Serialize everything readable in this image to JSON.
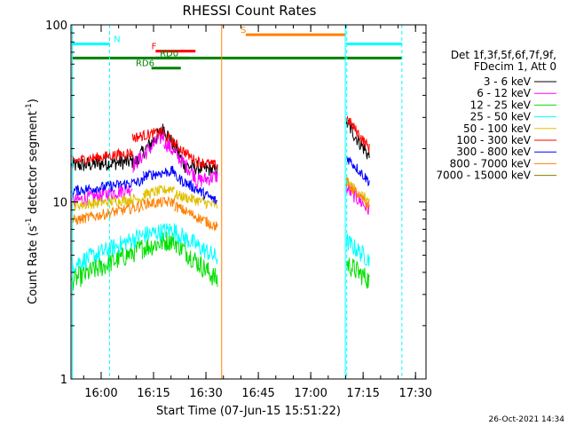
{
  "chart_data": {
    "type": "line",
    "title": "RHESSI Count Rates",
    "xlabel": "Start Time (07-Jun-15 15:51:22)",
    "ylabel_main": "Count Rate (s",
    "ylabel_sup": "-1",
    "ylabel_rest": " detector segment",
    "ylabel_sup2": "-1",
    "ylabel_close": ")",
    "ylog": true,
    "ylim": [
      1,
      100
    ],
    "y_ticks": [
      {
        "value": 1,
        "label": "1"
      },
      {
        "value": 10,
        "label": "10"
      },
      {
        "value": 100,
        "label": "100"
      }
    ],
    "x_ticks": [
      {
        "value": 16.0,
        "label": "16:00"
      },
      {
        "value": 16.25,
        "label": "16:15"
      },
      {
        "value": 16.5,
        "label": "16:30"
      },
      {
        "value": 16.75,
        "label": "16:45"
      },
      {
        "value": 17.0,
        "label": "17:00"
      },
      {
        "value": 17.25,
        "label": "17:15"
      },
      {
        "value": 17.5,
        "label": "17:30"
      }
    ],
    "xlim_hours": [
      15.8561,
      17.55
    ],
    "legend": {
      "header1": "Det 1f,3f,5f,6f,7f,9f,",
      "header2": "FDecim 1, Att 0",
      "placement": "right"
    },
    "series": [
      {
        "name": "3 - 6 keV",
        "color": "#000000",
        "base": 17,
        "noise": 0.1,
        "segments": [
          [
            15.86,
            16.18,
            16,
            17
          ],
          [
            16.18,
            16.3,
            18,
            26
          ],
          [
            16.3,
            16.4,
            26,
            16
          ],
          [
            16.4,
            16.555,
            16,
            15
          ],
          [
            17.17,
            17.28,
            28,
            18
          ]
        ]
      },
      {
        "name": "6 - 12 keV",
        "color": "#ff00ff",
        "base": 10,
        "noise": 0.1,
        "segments": [
          [
            15.86,
            16.15,
            10,
            12
          ],
          [
            16.15,
            16.3,
            16,
            24
          ],
          [
            16.3,
            16.45,
            22,
            14
          ],
          [
            16.45,
            16.555,
            13,
            14
          ],
          [
            17.17,
            17.28,
            12,
            9
          ]
        ]
      },
      {
        "name": "12 - 25 keV",
        "color": "#00e000",
        "base": 3.6,
        "noise": 0.14,
        "segments": [
          [
            15.86,
            16.2,
            3.6,
            5.5
          ],
          [
            16.2,
            16.35,
            5.5,
            6.2
          ],
          [
            16.35,
            16.555,
            6,
            3.6
          ],
          [
            17.17,
            17.28,
            4.5,
            3.6
          ]
        ]
      },
      {
        "name": "25 - 50 keV",
        "color": "#00ffff",
        "base": 4.5,
        "noise": 0.12,
        "segments": [
          [
            15.86,
            16.2,
            4.4,
            6.5
          ],
          [
            16.2,
            16.35,
            6.5,
            7
          ],
          [
            16.35,
            16.555,
            6.8,
            4.8
          ],
          [
            17.17,
            17.28,
            6,
            4.7
          ]
        ]
      },
      {
        "name": "50 - 100 keV",
        "color": "#e0c000",
        "base": 10,
        "noise": 0.07,
        "segments": [
          [
            15.86,
            16.2,
            9.5,
            10.5
          ],
          [
            16.2,
            16.35,
            11,
            12
          ],
          [
            16.35,
            16.555,
            11,
            9.5
          ],
          [
            17.17,
            17.28,
            13,
            10
          ]
        ]
      },
      {
        "name": "100 - 300 keV",
        "color": "#ff0000",
        "base": 17,
        "noise": 0.07,
        "segments": [
          [
            15.86,
            16.15,
            17,
            19
          ],
          [
            16.15,
            16.3,
            23,
            25
          ],
          [
            16.3,
            16.45,
            24,
            17
          ],
          [
            16.45,
            16.555,
            17,
            16
          ],
          [
            17.17,
            17.28,
            30,
            20
          ]
        ]
      },
      {
        "name": "300 - 800 keV",
        "color": "#0000ff",
        "base": 11.5,
        "noise": 0.07,
        "segments": [
          [
            15.86,
            16.2,
            11.5,
            13
          ],
          [
            16.2,
            16.35,
            14,
            15
          ],
          [
            16.35,
            16.555,
            14,
            10
          ],
          [
            17.17,
            17.28,
            18,
            13
          ]
        ]
      },
      {
        "name": "800 - 7000 keV",
        "color": "#ff8000",
        "base": 8,
        "noise": 0.07,
        "segments": [
          [
            15.86,
            16.2,
            7.8,
            9.5
          ],
          [
            16.2,
            16.35,
            9.8,
            10
          ],
          [
            16.35,
            16.555,
            9.5,
            7.2
          ],
          [
            17.17,
            17.28,
            13,
            9.3
          ]
        ]
      },
      {
        "name": "7000 - 15000 keV",
        "color": "#808000",
        "base": 9,
        "noise": 0.08,
        "segments": []
      }
    ],
    "flags": [
      {
        "label": "N",
        "color": "#00ffff",
        "y_value": 78,
        "x_start": 15.86,
        "x_end": 16.04,
        "label_x": 16.06
      },
      {
        "label": "",
        "color": "#00ffff",
        "y_value": 78,
        "x_start": 17.17,
        "x_end": 17.435,
        "label_x": null
      },
      {
        "label": "S",
        "color": "#ff8000",
        "y_value": 88,
        "x_start": 16.69,
        "x_end": 17.165,
        "label_x": 16.665
      },
      {
        "label": "F",
        "color": "#ff0000",
        "y_value": 71,
        "x_start": 16.26,
        "x_end": 16.45,
        "label_x": 16.24
      },
      {
        "label": "RD0",
        "color": "#008000",
        "y_value": 65,
        "x_start": 16.26,
        "x_end": 16.42,
        "label_x": 16.28
      },
      {
        "label": "",
        "color": "#008000",
        "y_value": 65,
        "x_start": 15.86,
        "x_end": 17.435,
        "label_x": null
      },
      {
        "label": "RD6",
        "color": "#008000",
        "y_value": 57,
        "x_start": 16.24,
        "x_end": 16.38,
        "label_x": 16.165
      }
    ],
    "vlines": [
      {
        "x": 15.862,
        "color": "#00ffff",
        "style": "solid"
      },
      {
        "x": 16.04,
        "color": "#00ffff",
        "style": "dashed"
      },
      {
        "x": 16.575,
        "color": "#ff8000",
        "style": "solid"
      },
      {
        "x": 17.165,
        "color": "#00ffff",
        "style": "solid"
      },
      {
        "x": 17.172,
        "color": "#00ffff",
        "style": "dashed"
      },
      {
        "x": 17.435,
        "color": "#00ffff",
        "style": "dashed"
      }
    ],
    "grid": false
  },
  "timestamp": "26-Oct-2021 14:34"
}
